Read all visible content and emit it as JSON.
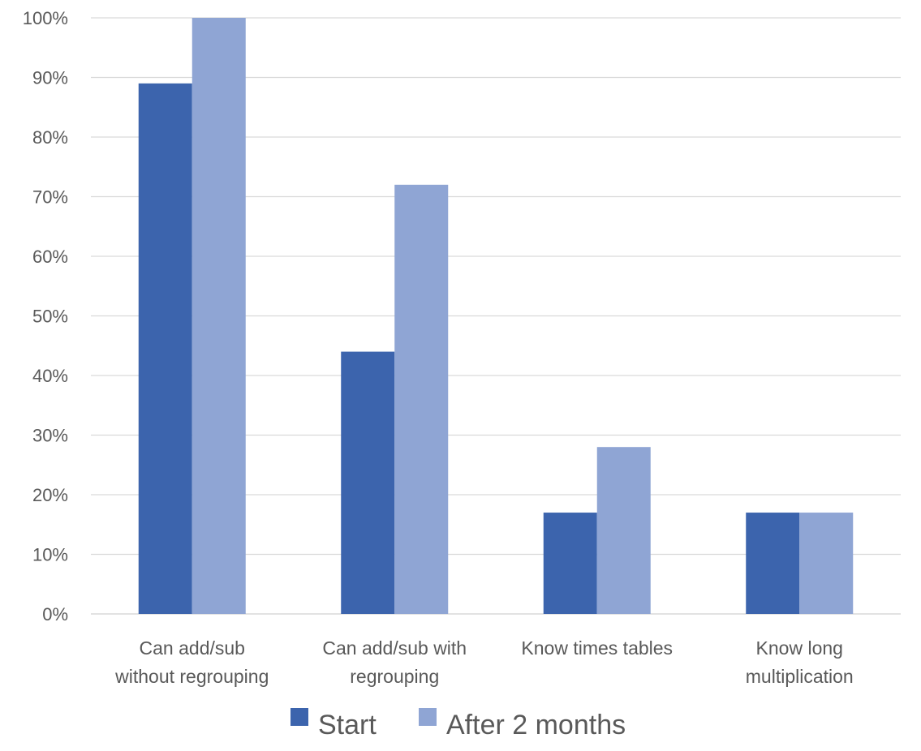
{
  "chart_data": {
    "type": "bar",
    "title": "",
    "xlabel": "",
    "ylabel": "",
    "categories": [
      [
        "Can add/sub",
        "without regrouping"
      ],
      [
        "Can add/sub with",
        "regrouping"
      ],
      [
        "Know times tables"
      ],
      [
        "Know long",
        "multiplication"
      ]
    ],
    "series": [
      {
        "name": "Start",
        "values": [
          89,
          44,
          17,
          17
        ]
      },
      {
        "name": "After 2 months",
        "values": [
          100,
          72,
          28,
          17
        ]
      }
    ],
    "ylim": [
      0,
      100
    ],
    "yticks": [
      "0%",
      "10%",
      "20%",
      "30%",
      "40%",
      "50%",
      "60%",
      "70%",
      "80%",
      "90%",
      "100%"
    ],
    "grid": true,
    "legend": "bottom-center"
  },
  "colors": {
    "Start": "#3c64ad",
    "After 2 months": "#8fa5d4"
  }
}
